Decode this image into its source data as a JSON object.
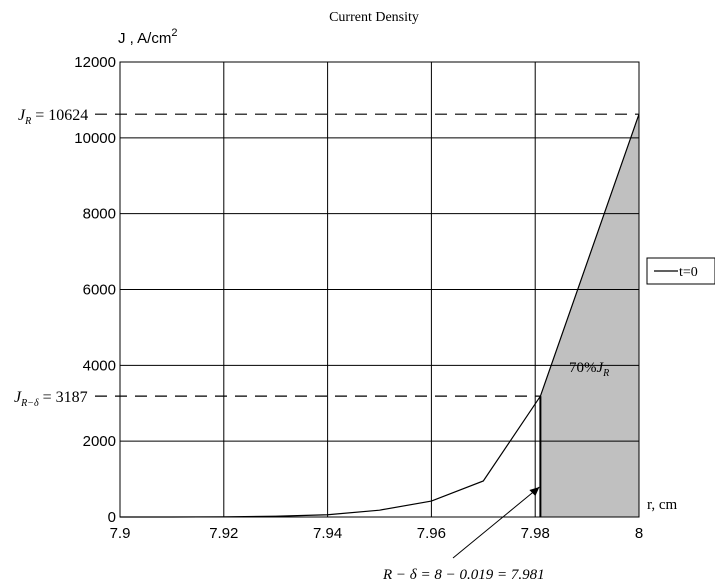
{
  "chart_data": {
    "type": "line",
    "title": "Current Density",
    "ylabel": "J  , A/cm",
    "ylabel_superscript": "2",
    "xlabel": "r, cm",
    "xlim": [
      7.9,
      8.0
    ],
    "ylim": [
      0,
      12000
    ],
    "x_ticks": [
      "7.9",
      "7.92",
      "7.94",
      "7.96",
      "7.98",
      "8"
    ],
    "y_ticks": [
      "0",
      "2000",
      "4000",
      "6000",
      "8000",
      "10000",
      "12000"
    ],
    "grid": true,
    "legend": {
      "position": "right",
      "entries": [
        "t=0"
      ]
    },
    "series": [
      {
        "name": "t=0",
        "x": [
          7.9,
          7.91,
          7.92,
          7.93,
          7.94,
          7.95,
          7.96,
          7.97,
          7.981,
          8.0
        ],
        "y": [
          0,
          0,
          5,
          20,
          60,
          180,
          420,
          950,
          3187,
          10624
        ]
      }
    ],
    "shaded_region": {
      "x_from": 7.981,
      "x_to": 8.0,
      "color": "#c0c0c0"
    },
    "vertical_marker": {
      "x": 7.981
    },
    "annotations": {
      "jr": {
        "symbol": "J",
        "subscript": "R",
        "text": " = 10624",
        "y": 10624
      },
      "jrd": {
        "symbol": "J",
        "subscript": "R−δ",
        "text": " = 3187",
        "y": 3187
      },
      "percent": {
        "text": "70%",
        "symbol": "J",
        "subscript": "R"
      },
      "delta": {
        "text": "R − δ = 8 − 0.019 = 7.981"
      }
    }
  }
}
